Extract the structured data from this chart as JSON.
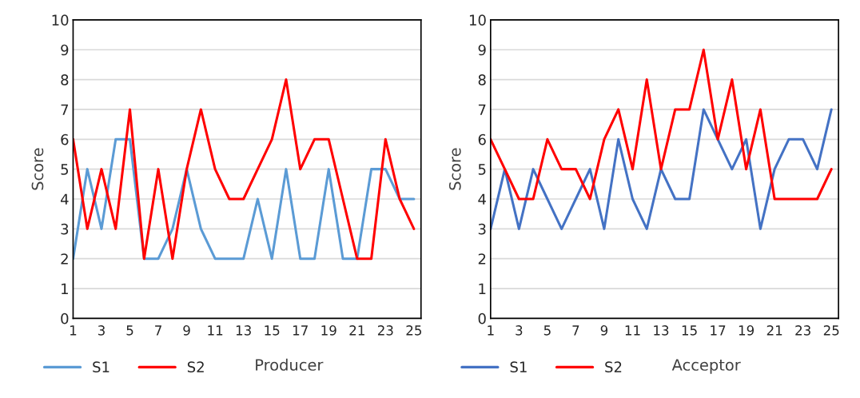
{
  "chart_data": [
    {
      "type": "line",
      "xlabel": "Producer",
      "ylabel": "Score",
      "categories": [
        "1",
        null,
        "3",
        null,
        "5",
        null,
        "7",
        null,
        "9",
        null,
        "11",
        null,
        "13",
        null,
        "15",
        null,
        "17",
        null,
        "19",
        null,
        "21",
        null,
        "23",
        null,
        "25"
      ],
      "series": [
        {
          "name": "S1",
          "color": "#5b9bd5",
          "values": [
            2,
            5,
            3,
            6,
            6,
            2,
            2,
            3,
            5,
            3,
            2,
            2,
            2,
            4,
            2,
            5,
            2,
            2,
            5,
            2,
            2,
            5,
            5,
            4,
            4
          ]
        },
        {
          "name": "S2",
          "color": "#ff0000",
          "values": [
            6,
            3,
            5,
            3,
            7,
            2,
            5,
            2,
            5,
            7,
            5,
            4,
            4,
            5,
            6,
            8,
            5,
            6,
            6,
            4,
            2,
            2,
            6,
            4,
            3
          ]
        }
      ],
      "ylim": [
        0,
        10
      ],
      "yticks": [
        0,
        1,
        2,
        3,
        4,
        5,
        6,
        7,
        8,
        9,
        10
      ],
      "grid": "y",
      "legend": "bottom left",
      "marker": "none",
      "line_style": "solid"
    },
    {
      "type": "line",
      "xlabel": "Acceptor",
      "ylabel": "Score",
      "categories": [
        "1",
        null,
        "3",
        null,
        "5",
        null,
        "7",
        null,
        "9",
        null,
        "11",
        null,
        "13",
        null,
        "15",
        null,
        "17",
        null,
        "19",
        null,
        "21",
        null,
        "23",
        null,
        "25"
      ],
      "series": [
        {
          "name": "S1",
          "color": "#4472c4",
          "values": [
            3,
            5,
            3,
            5,
            4,
            3,
            4,
            5,
            3,
            6,
            4,
            3,
            5,
            4,
            4,
            7,
            6,
            5,
            6,
            3,
            5,
            6,
            6,
            5,
            7
          ]
        },
        {
          "name": "S2",
          "color": "#ff0000",
          "values": [
            6,
            5,
            4,
            4,
            6,
            5,
            5,
            4,
            6,
            7,
            5,
            8,
            5,
            7,
            7,
            9,
            6,
            8,
            5,
            7,
            4,
            4,
            4,
            4,
            5
          ]
        }
      ],
      "ylim": [
        0,
        10
      ],
      "yticks": [
        0,
        1,
        2,
        3,
        4,
        5,
        6,
        7,
        8,
        9,
        10
      ],
      "grid": "y",
      "legend": "bottom left",
      "marker": "none",
      "line_style": "solid"
    }
  ]
}
